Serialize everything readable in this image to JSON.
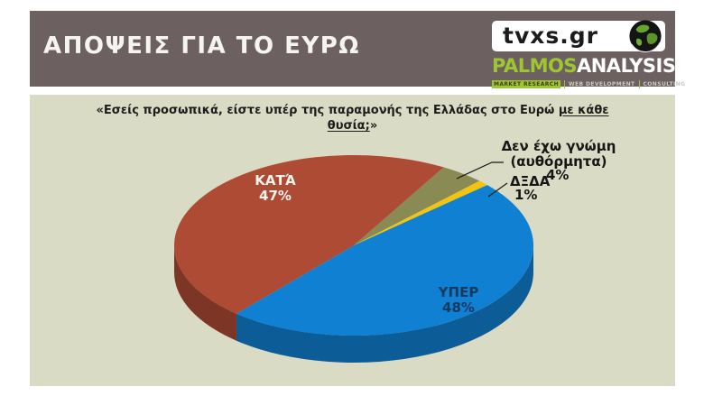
{
  "header": {
    "title": "ΑΠΟΨΕΙΣ ΓΙΑ ΤΟ ΕΥΡΩ",
    "tvxs_logo_text": "tvxs.gr",
    "palmos_brand_primary": "PALMOS",
    "palmos_brand_secondary": "ANALYSIS",
    "palmos_tagline_parts": [
      "MARKET RESEARCH",
      "WEB DEVELOPMENT",
      "CONSULTING"
    ]
  },
  "question": {
    "prefix": "«Εσείς προσωπικά, είστε υπέρ της παραμονής της Ελλάδας στο Ευρώ ",
    "underlined_1": "με κάθε",
    "underlined_2": "θυσία;",
    "suffix": "»"
  },
  "chart_data": {
    "type": "pie",
    "style_3d": true,
    "title": "«Εσείς προσωπικά, είστε υπέρ της παραμονής της Ελλάδας στο Ευρώ με κάθε θυσία;»",
    "unit": "%",
    "slices": [
      {
        "label": "ΥΠΕΡ",
        "value": 48,
        "color": "#0f80d2",
        "label_color": "#17395e"
      },
      {
        "label": "ΚΑΤΆ",
        "value": 47,
        "color": "#ad4b35",
        "label_color": "#f8f4ee"
      },
      {
        "label": "Δεν έχω γνώμη (αυθόρμητα)",
        "value": 4,
        "color": "#8a8a55",
        "label_color": "#161616"
      },
      {
        "label": "ΔΞΔΑ",
        "value": 1,
        "color": "#f2c40f",
        "label_color": "#161616"
      }
    ],
    "start_angle_clockwise_from_top_deg": 30,
    "draw_order_clockwise": [
      "Δεν έχω γνώμη (αυθόρμητα)",
      "ΔΞΔΑ",
      "ΥΠΕΡ",
      "ΚΑΤΆ"
    ],
    "legend": "none",
    "labels_on_chart": true
  },
  "chart_labels": {
    "kata_name": "ΚΑΤΆ",
    "kata_pct": "47%",
    "yper_name": "ΥΠΕΡ",
    "yper_pct": "48%",
    "no_opinion_line1": "Δεν έχω γνώμη",
    "no_opinion_line2": "(αυθόρμητα)",
    "no_opinion_pct": "4%",
    "dxda_name": "ΔΞΔΑ",
    "dxda_pct": "1%"
  },
  "colors": {
    "header_bg": "#6c6160",
    "panel_bg": "#d9dbc5",
    "brand_green": "#9dc631",
    "slice_yper": "#0f80d2",
    "slice_kata": "#ad4b35",
    "slice_no_opinion": "#8a8a55",
    "slice_dxda": "#f2c40f"
  }
}
